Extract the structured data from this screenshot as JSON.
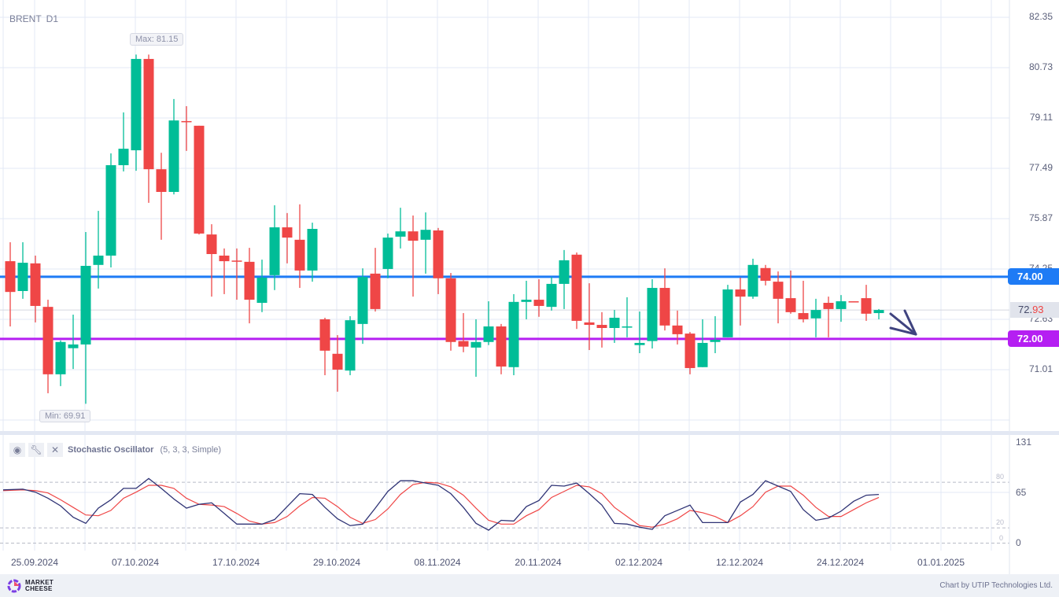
{
  "header": {
    "symbol": "BRENT",
    "timeframe": "D1"
  },
  "max_label": "Max: 81.15",
  "min_label": "Min: 69.91",
  "price_axis": [
    "82.35",
    "80.73",
    "79.11",
    "77.49",
    "75.87",
    "74.25",
    "72.63",
    "71.01"
  ],
  "levels": [
    {
      "label": "74.00",
      "value": 74.0,
      "color": "#1e7bf5"
    },
    {
      "label": "72.00",
      "value": 72.0,
      "color": "#b51ff2"
    }
  ],
  "current_price": {
    "prefix": "72.",
    "suffix": "93",
    "value": 72.93
  },
  "oscillator": {
    "name": "Stochastic Oscillator",
    "params": "(5, 3, 3, Simple)",
    "axis": [
      "131",
      "65",
      "0"
    ],
    "levels": [
      "80",
      "20",
      "0"
    ],
    "icons": [
      "eye-icon",
      "wrench-icon",
      "close-icon"
    ]
  },
  "dates": [
    "25.09.2024",
    "07.10.2024",
    "17.10.2024",
    "29.10.2024",
    "08.11.2024",
    "20.11.2024",
    "02.12.2024",
    "12.12.2024",
    "24.12.2024",
    "01.01.2025"
  ],
  "footer": {
    "logo_line1": "MARKET",
    "logo_line2": "CHEESE",
    "credit": "Chart by UTIP Technologies Ltd."
  },
  "colors": {
    "up": "#00bd97",
    "down": "#ef4646",
    "k_line": "#2f3375",
    "d_line": "#ef4646",
    "arrow": "#3f437f"
  },
  "chart_data": {
    "type": "candlestick",
    "ylim": [
      69.39,
      82.35
    ],
    "candles": [
      [
        74.5,
        75.11,
        72.4,
        73.51
      ],
      [
        73.54,
        75.11,
        73.29,
        74.45
      ],
      [
        74.43,
        74.68,
        72.53,
        73.06
      ],
      [
        73.03,
        73.26,
        70.25,
        70.86
      ],
      [
        70.86,
        71.95,
        70.48,
        71.9
      ],
      [
        71.7,
        72.78,
        71.03,
        71.82
      ],
      [
        71.82,
        75.44,
        69.91,
        74.35
      ],
      [
        74.38,
        76.12,
        73.62,
        74.68
      ],
      [
        74.68,
        77.97,
        74.3,
        77.59
      ],
      [
        77.59,
        79.29,
        77.39,
        78.12
      ],
      [
        78.07,
        81.15,
        77.41,
        81.01
      ],
      [
        81.01,
        81.15,
        76.38,
        77.46
      ],
      [
        77.46,
        77.99,
        75.19,
        76.73
      ],
      [
        76.73,
        79.72,
        76.65,
        79.03
      ],
      [
        79.01,
        79.49,
        78.05,
        78.98
      ],
      [
        78.86,
        78.86,
        75.36,
        75.39
      ],
      [
        75.36,
        75.69,
        73.36,
        74.73
      ],
      [
        74.68,
        74.91,
        73.44,
        74.5
      ],
      [
        74.52,
        74.91,
        73.26,
        74.5
      ],
      [
        74.48,
        74.93,
        72.5,
        73.26
      ],
      [
        73.16,
        74.55,
        72.86,
        73.97
      ],
      [
        74.05,
        76.3,
        73.57,
        75.59
      ],
      [
        75.59,
        76.05,
        74.43,
        75.26
      ],
      [
        75.19,
        76.33,
        73.64,
        74.2
      ],
      [
        74.2,
        75.74,
        73.84,
        75.54
      ],
      [
        72.63,
        72.68,
        70.83,
        71.62
      ],
      [
        71.52,
        72.12,
        70.3,
        71.01
      ],
      [
        70.98,
        72.73,
        70.83,
        72.6
      ],
      [
        72.48,
        74.27,
        71.84,
        73.99
      ],
      [
        74.1,
        74.93,
        72.88,
        72.96
      ],
      [
        74.25,
        75.39,
        73.95,
        75.26
      ],
      [
        75.29,
        76.22,
        74.91,
        75.46
      ],
      [
        75.46,
        75.97,
        73.36,
        75.16
      ],
      [
        75.19,
        76.07,
        74.1,
        75.51
      ],
      [
        75.49,
        75.57,
        73.44,
        73.95
      ],
      [
        73.95,
        74.12,
        71.62,
        71.9
      ],
      [
        71.93,
        72.83,
        71.57,
        71.75
      ],
      [
        71.72,
        72.63,
        70.78,
        71.9
      ],
      [
        71.9,
        73.21,
        71.8,
        72.4
      ],
      [
        72.4,
        72.48,
        70.86,
        71.11
      ],
      [
        71.09,
        73.44,
        70.83,
        73.19
      ],
      [
        73.19,
        73.87,
        72.63,
        73.26
      ],
      [
        73.26,
        73.92,
        72.71,
        73.06
      ],
      [
        73.03,
        73.99,
        72.91,
        73.77
      ],
      [
        73.77,
        74.86,
        72.96,
        74.53
      ],
      [
        74.71,
        74.78,
        72.32,
        72.58
      ],
      [
        72.53,
        73.79,
        71.64,
        72.45
      ],
      [
        72.45,
        72.86,
        71.72,
        72.35
      ],
      [
        72.35,
        72.93,
        71.87,
        72.68
      ],
      [
        72.38,
        73.34,
        72.05,
        72.4
      ],
      [
        71.8,
        72.88,
        71.54,
        71.87
      ],
      [
        71.93,
        73.92,
        71.69,
        73.64
      ],
      [
        73.64,
        74.27,
        72.27,
        72.43
      ],
      [
        72.43,
        72.91,
        71.82,
        72.15
      ],
      [
        72.17,
        72.22,
        70.86,
        71.06
      ],
      [
        71.09,
        72.63,
        71.09,
        71.87
      ],
      [
        71.9,
        72.73,
        71.54,
        71.97
      ],
      [
        72.05,
        73.74,
        72.05,
        73.59
      ],
      [
        73.59,
        73.97,
        72.43,
        73.36
      ],
      [
        73.36,
        74.58,
        73.29,
        74.38
      ],
      [
        74.28,
        74.38,
        73.72,
        73.87
      ],
      [
        73.84,
        74.17,
        72.5,
        73.29
      ],
      [
        73.31,
        74.2,
        72.81,
        72.86
      ],
      [
        72.83,
        73.87,
        72.53,
        72.63
      ],
      [
        72.66,
        73.29,
        72.05,
        72.93
      ],
      [
        73.16,
        73.36,
        72.05,
        72.96
      ],
      [
        72.96,
        73.41,
        72.55,
        73.21
      ],
      [
        73.21,
        73.21,
        73.19,
        73.19
      ],
      [
        73.31,
        73.74,
        72.58,
        72.81
      ],
      [
        72.83,
        72.96,
        72.63,
        72.93
      ]
    ],
    "stochastic": {
      "ylim": [
        0,
        131
      ],
      "k": [
        70,
        71,
        67,
        59,
        49,
        34,
        26,
        46,
        57,
        72,
        72,
        85,
        72,
        58,
        46,
        51,
        53,
        39,
        25,
        25,
        25,
        31,
        48,
        65,
        64,
        47,
        32,
        23,
        25,
        46,
        68,
        82,
        82,
        79,
        76,
        65,
        47,
        26,
        17,
        30,
        29,
        48,
        56,
        76,
        75,
        79,
        65,
        50,
        26,
        25,
        21,
        18,
        36,
        43,
        50,
        27,
        27,
        27,
        54,
        64,
        82,
        75,
        68,
        44,
        30,
        33,
        42,
        55,
        63,
        64
      ],
      "d": [
        69,
        70,
        69,
        66,
        57,
        47,
        37,
        36,
        43,
        59,
        67,
        76,
        76,
        72,
        59,
        51,
        50,
        48,
        39,
        29,
        25,
        27,
        35,
        49,
        60,
        59,
        48,
        34,
        26,
        31,
        45,
        64,
        77,
        80,
        79,
        74,
        63,
        46,
        30,
        25,
        25,
        36,
        44,
        60,
        68,
        76,
        74,
        65,
        47,
        35,
        23,
        21,
        25,
        32,
        43,
        40,
        35,
        27,
        36,
        48,
        67,
        75,
        75,
        63,
        47,
        35,
        35,
        44,
        53,
        60
      ]
    }
  }
}
